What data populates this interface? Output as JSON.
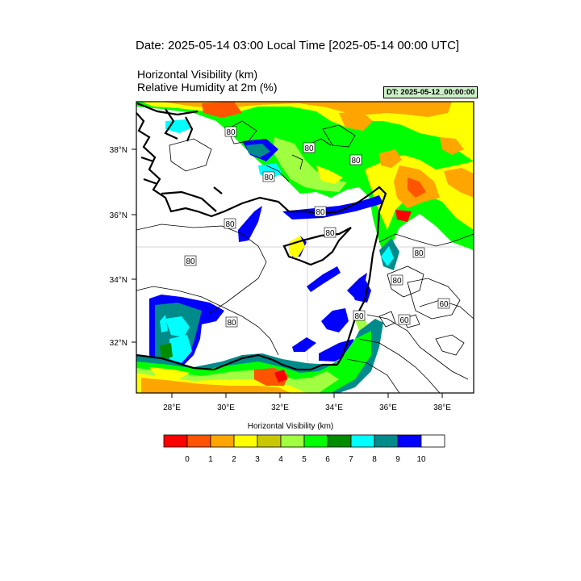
{
  "header": {
    "date": "Date: 2025-05-14  03:00 Local Time [2025-05-14  00:00 UTC]",
    "title_line1": "Horizontal Visibility   (km)",
    "title_line2": "Relative Humidity at 2m   (%)",
    "dt_badge": "DT: 2025-05-12_00:00:00"
  },
  "map": {
    "lon_ticks": [
      "28°E",
      "30°E",
      "32°E",
      "34°E",
      "36°E",
      "38°E"
    ],
    "lat_ticks": [
      "38°N",
      "36°N",
      "34°N",
      "32°N"
    ],
    "contour_labels": [
      "80",
      "80",
      "80",
      "80",
      "80",
      "80",
      "80",
      "80",
      "80",
      "80",
      "80",
      "80",
      "60",
      "60"
    ]
  },
  "colorbar": {
    "title": "Horizontal Visibility  (km)",
    "labels": [
      "0",
      "1",
      "2",
      "3",
      "4",
      "5",
      "6",
      "7",
      "8",
      "9",
      "10"
    ],
    "colors": [
      "#ff0000",
      "#ff5500",
      "#ffa500",
      "#ffff00",
      "#c8c800",
      "#a0ff40",
      "#00ff00",
      "#008c00",
      "#00ffff",
      "#008b8b",
      "#0000ff",
      "#ffffff"
    ]
  }
}
